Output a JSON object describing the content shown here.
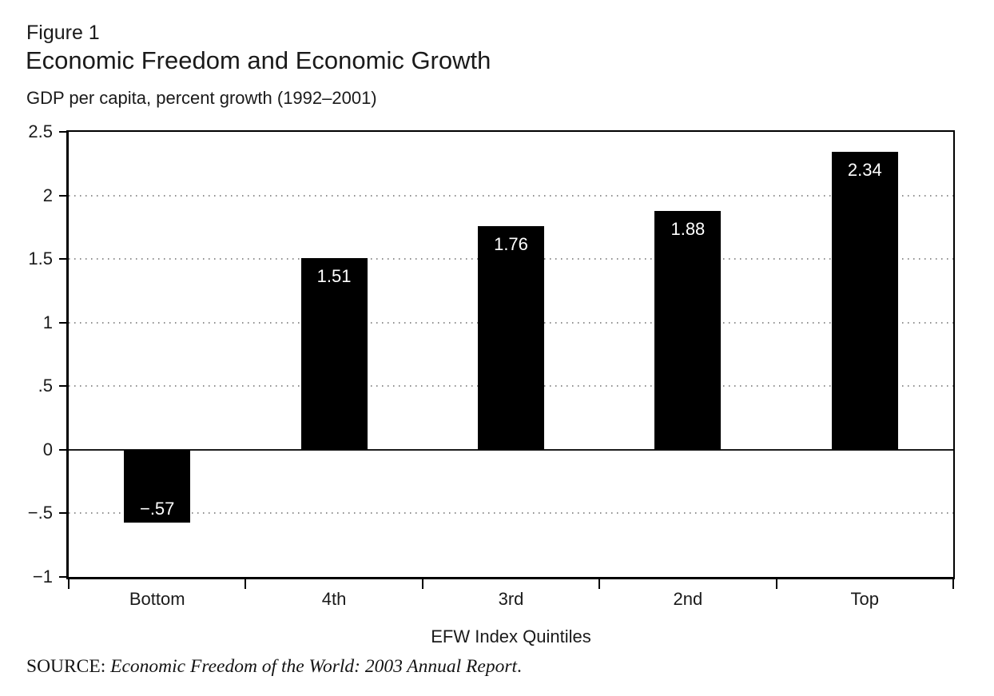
{
  "figure_label": "Figure 1",
  "title": "Economic Freedom and Economic Growth",
  "subtitle": "GDP per capita, percent growth (1992–2001)",
  "source": {
    "prefix": "SOURCE: ",
    "citation": "Economic Freedom of the World: 2003 Annual Report",
    "suffix": "."
  },
  "colors": {
    "background": "#ffffff",
    "bar": "#000000",
    "bar_label": "#ffffff",
    "gridline": "#8f8f8f",
    "axis": "#000000",
    "text": "#1a1a1a"
  },
  "chart_data": {
    "type": "bar",
    "title": "Economic Freedom and Economic Growth",
    "subtitle": "GDP per capita, percent growth (1992–2001)",
    "figure_number": "Figure 1",
    "categories": [
      "Bottom",
      "4th",
      "3rd",
      "2nd",
      "Top"
    ],
    "values": [
      -0.57,
      1.51,
      1.76,
      1.88,
      2.34
    ],
    "bar_labels": [
      "−.57",
      "1.51",
      "1.76",
      "1.88",
      "2.34"
    ],
    "xlabel": "EFW Index Quintiles",
    "ylim": [
      -1,
      2.5
    ],
    "yticks": [
      2.5,
      2,
      1.5,
      1,
      0.5,
      0,
      -0.5,
      -1
    ],
    "ytick_labels": [
      "2.5",
      "2",
      "1.5",
      "1",
      ".5",
      "0",
      "−.5",
      "−1"
    ],
    "grid": "horizontal dotted gridlines at each tick, solid line at 0, full frame around plot",
    "legend_position": "none",
    "bar_color": "#000000",
    "source": "SOURCE: Economic Freedom of the World: 2003 Annual Report."
  }
}
